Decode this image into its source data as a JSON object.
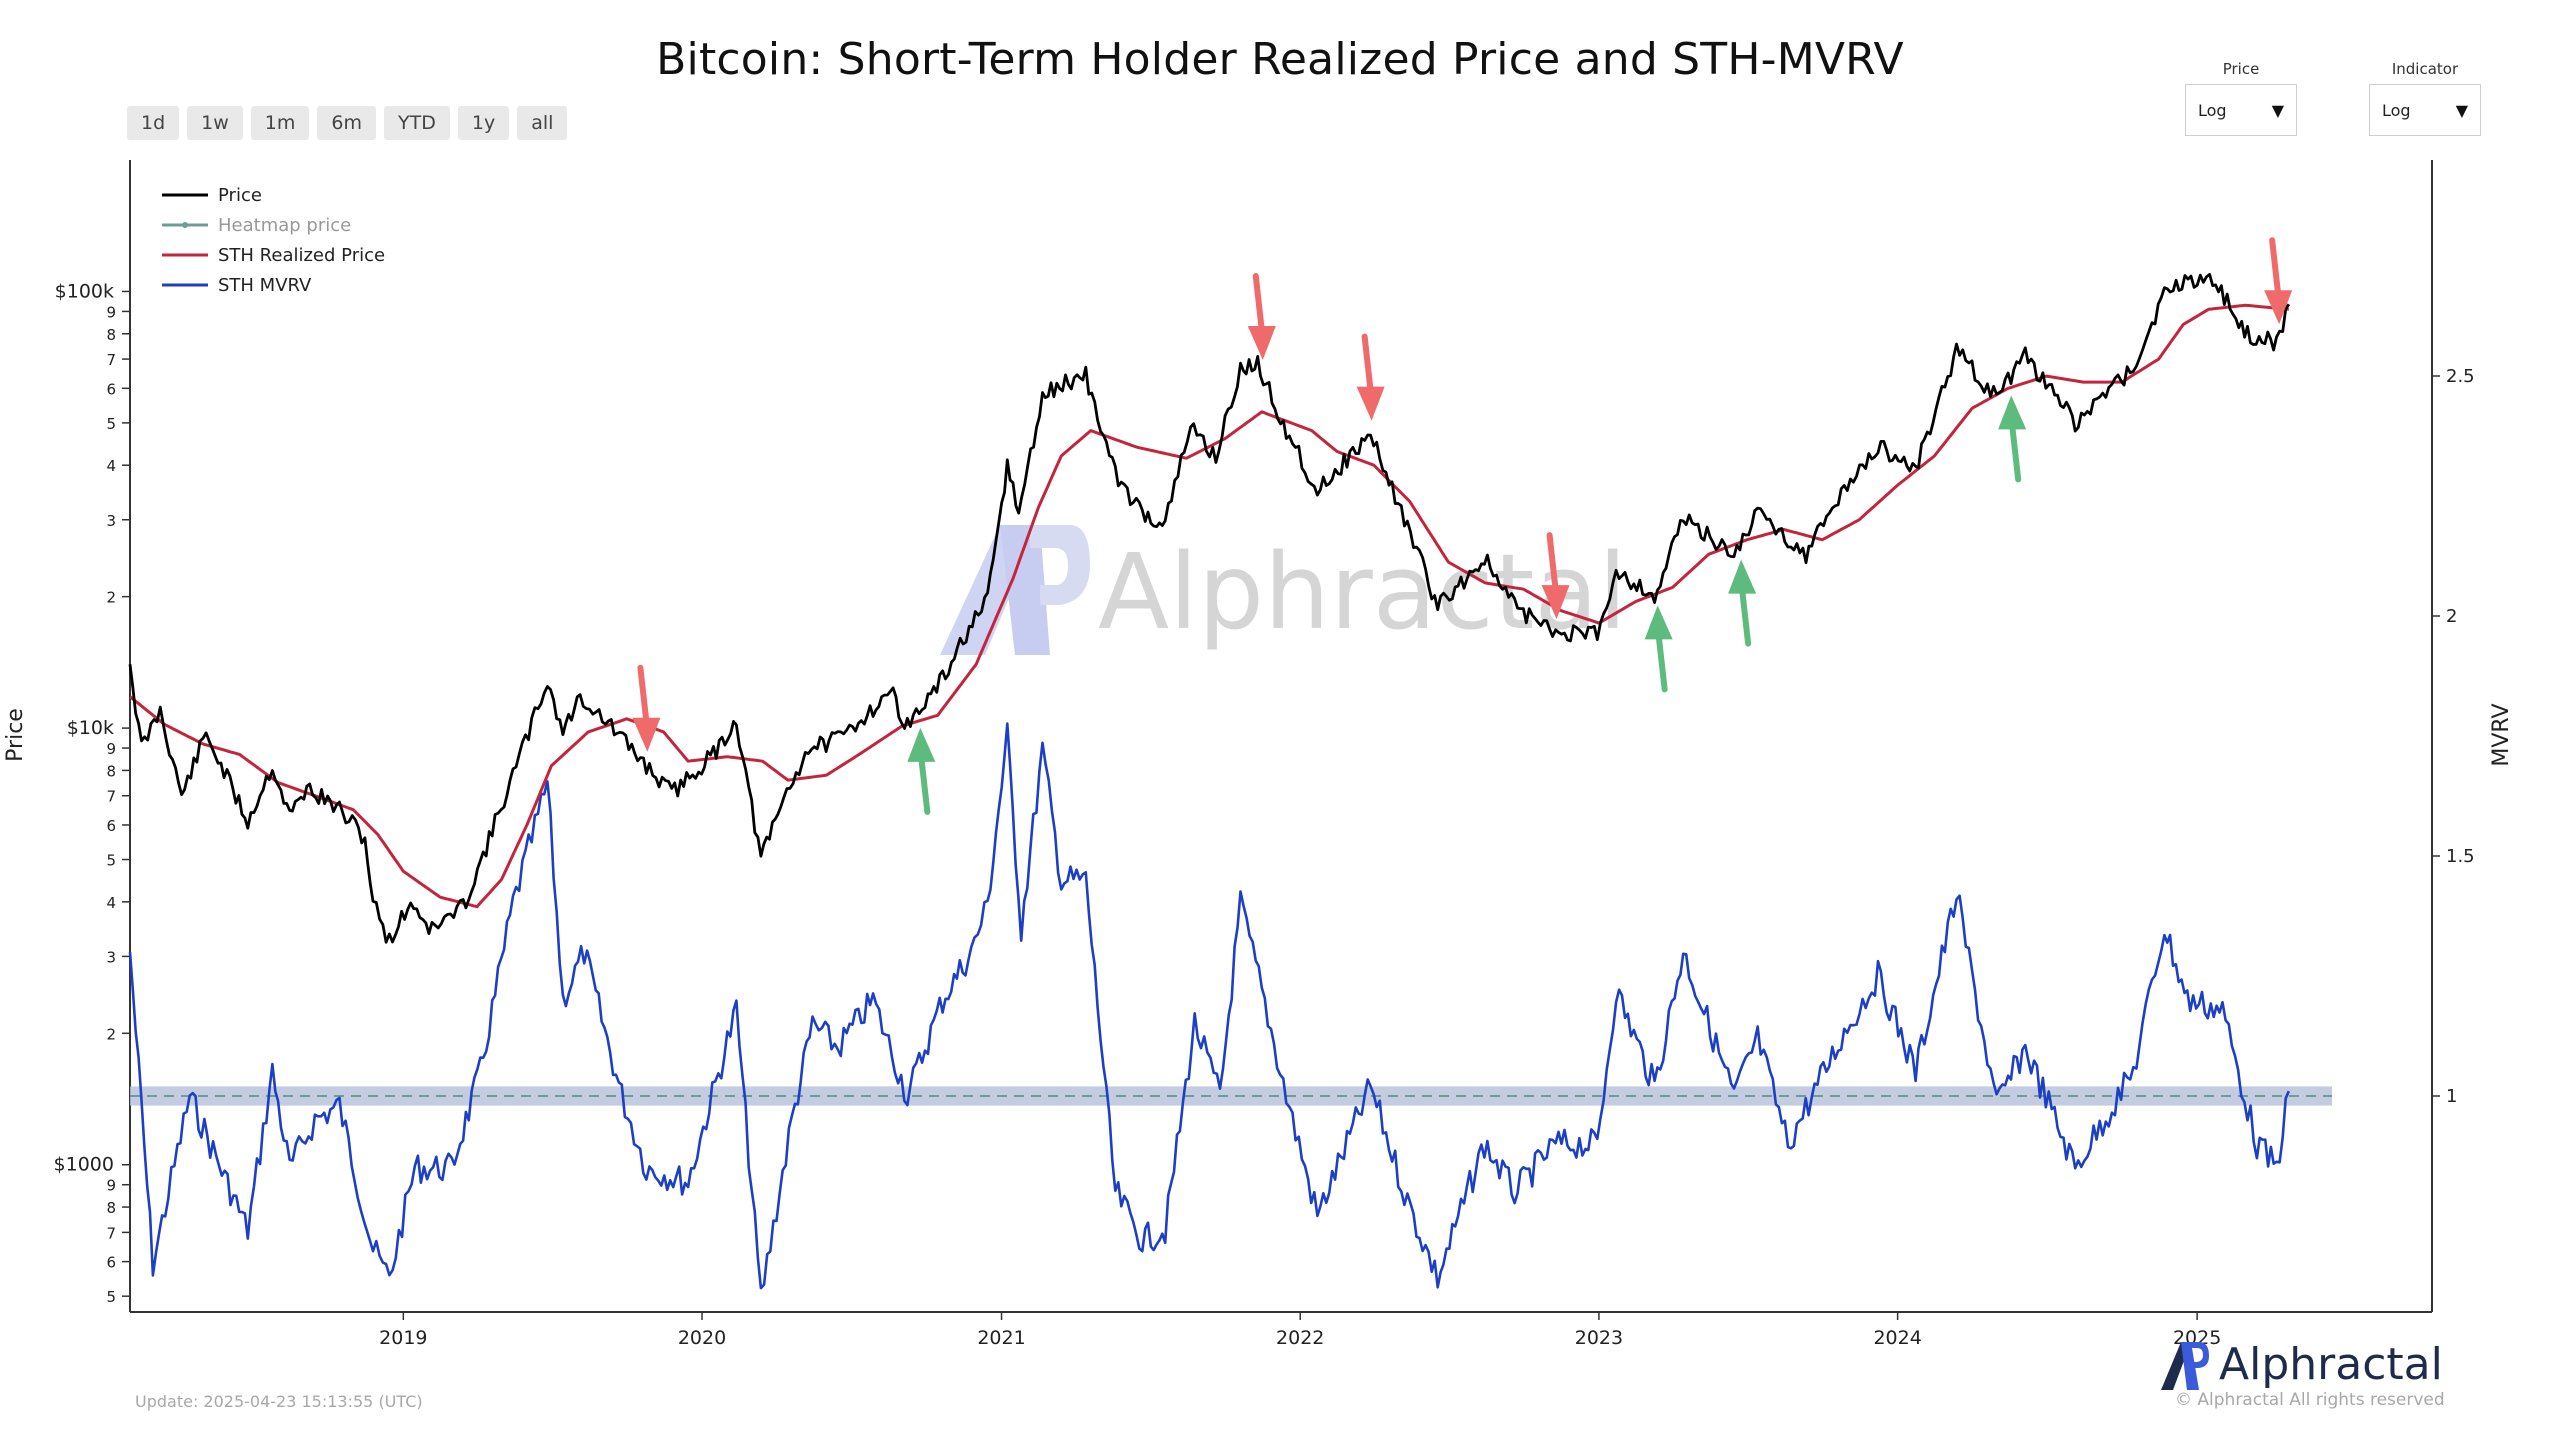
{
  "title": "Bitcoin: Short-Term Holder Realized Price and STH-MVRV",
  "range_buttons": [
    "1d",
    "1w",
    "1m",
    "6m",
    "YTD",
    "1y",
    "all"
  ],
  "controls": {
    "price": {
      "label": "Price",
      "value": "Log"
    },
    "indicator": {
      "label": "Indicator",
      "value": "Log"
    }
  },
  "watermark": "Alphractal",
  "update": "Update: 2025-04-23 15:13:55 (UTC)",
  "brand": {
    "name": "Alphractal",
    "rights": "© Alphractal All rights reserved"
  },
  "colors": {
    "price": "#000000",
    "heatmap": "#6a9e96",
    "sth_realized": "#c3253c",
    "sth_mvrv": "#1d3fc4",
    "band": "#b8c3da",
    "arrow_sell": "#ef6b6b",
    "arrow_buy": "#5dbb7d"
  },
  "chart_data": {
    "type": "line",
    "title": "Bitcoin: Short-Term Holder Realized Price and STH-MVRV",
    "ylabel": "Price",
    "y2label": "MVRV",
    "y_scale": "log",
    "ylim": [
      460,
      200000
    ],
    "y2lim": [
      0.55,
      2.95
    ],
    "xlim": [
      "2018-02-01",
      "2025-10-15"
    ],
    "x_ticks": [
      "2019",
      "2020",
      "2021",
      "2022",
      "2023",
      "2024",
      "2025"
    ],
    "y_ticks": [
      "$100k",
      "9",
      "8",
      "7",
      "6",
      "5",
      "4",
      "3",
      "2",
      "$10k",
      "9",
      "8",
      "7",
      "6",
      "5",
      "4",
      "3",
      "2",
      "$1000",
      "9",
      "8",
      "7",
      "6",
      "5"
    ],
    "y2_ticks": [
      "1",
      "1.5",
      "2",
      "2.5"
    ],
    "legend": [
      "Price",
      "Heatmap price",
      "STH Realized Price",
      "STH MVRV"
    ],
    "legend_position": "top-left",
    "grid": false,
    "series": [
      {
        "name": "Price",
        "axis": "left",
        "points": [
          [
            "2018-02-01",
            14000
          ],
          [
            "2018-02-15",
            9000
          ],
          [
            "2018-03-10",
            11000
          ],
          [
            "2018-04-05",
            7000
          ],
          [
            "2018-05-05",
            9700
          ],
          [
            "2018-06-25",
            6100
          ],
          [
            "2018-07-25",
            8200
          ],
          [
            "2018-08-15",
            6300
          ],
          [
            "2018-09-05",
            7300
          ],
          [
            "2018-10-15",
            6500
          ],
          [
            "2018-11-15",
            5600
          ],
          [
            "2018-11-25",
            4000
          ],
          [
            "2018-12-15",
            3250
          ],
          [
            "2019-01-10",
            4000
          ],
          [
            "2019-02-05",
            3450
          ],
          [
            "2019-03-15",
            3900
          ],
          [
            "2019-04-05",
            4900
          ],
          [
            "2019-05-15",
            7800
          ],
          [
            "2019-06-26",
            12800
          ],
          [
            "2019-07-15",
            9800
          ],
          [
            "2019-08-05",
            11800
          ],
          [
            "2019-09-05",
            10400
          ],
          [
            "2019-10-25",
            8200
          ],
          [
            "2019-11-25",
            7100
          ],
          [
            "2020-01-15",
            8700
          ],
          [
            "2020-02-12",
            10400
          ],
          [
            "2020-03-13",
            5000
          ],
          [
            "2020-04-10",
            6900
          ],
          [
            "2020-05-10",
            9000
          ],
          [
            "2020-06-15",
            9400
          ],
          [
            "2020-07-28",
            11100
          ],
          [
            "2020-08-18",
            12200
          ],
          [
            "2020-09-08",
            10100
          ],
          [
            "2020-10-21",
            12900
          ],
          [
            "2020-11-15",
            16000
          ],
          [
            "2020-12-15",
            19500
          ],
          [
            "2021-01-08",
            40000
          ],
          [
            "2021-01-22",
            31000
          ],
          [
            "2021-02-20",
            57000
          ],
          [
            "2021-03-13",
            61000
          ],
          [
            "2021-04-14",
            64000
          ],
          [
            "2021-05-20",
            38000
          ],
          [
            "2021-06-22",
            31000
          ],
          [
            "2021-07-20",
            29500
          ],
          [
            "2021-08-20",
            49000
          ],
          [
            "2021-09-20",
            42000
          ],
          [
            "2021-10-20",
            66000
          ],
          [
            "2021-11-10",
            68000
          ],
          [
            "2021-12-15",
            48000
          ],
          [
            "2022-01-22",
            35000
          ],
          [
            "2022-03-28",
            47000
          ],
          [
            "2022-05-12",
            29000
          ],
          [
            "2022-06-18",
            19000
          ],
          [
            "2022-08-14",
            24400
          ],
          [
            "2022-09-20",
            19000
          ],
          [
            "2022-11-09",
            16500
          ],
          [
            "2022-12-30",
            16500
          ],
          [
            "2023-01-22",
            23000
          ],
          [
            "2023-03-10",
            20000
          ],
          [
            "2023-04-14",
            30300
          ],
          [
            "2023-06-15",
            25000
          ],
          [
            "2023-07-14",
            31300
          ],
          [
            "2023-09-11",
            25000
          ],
          [
            "2023-10-24",
            34500
          ],
          [
            "2023-12-08",
            44000
          ],
          [
            "2024-01-23",
            39500
          ],
          [
            "2024-03-13",
            73000
          ],
          [
            "2024-05-01",
            57000
          ],
          [
            "2024-06-05",
            71000
          ],
          [
            "2024-08-05",
            50000
          ],
          [
            "2024-10-15",
            67000
          ],
          [
            "2024-11-22",
            98000
          ],
          [
            "2024-12-17",
            106000
          ],
          [
            "2025-01-20",
            108000
          ],
          [
            "2025-02-28",
            80000
          ],
          [
            "2025-04-08",
            76000
          ],
          [
            "2025-04-23",
            93500
          ]
        ]
      },
      {
        "name": "STH Realized Price",
        "axis": "left",
        "points": [
          [
            "2018-02-01",
            11800
          ],
          [
            "2018-03-15",
            10200
          ],
          [
            "2018-05-01",
            9200
          ],
          [
            "2018-06-15",
            8700
          ],
          [
            "2018-08-01",
            7500
          ],
          [
            "2018-09-15",
            7000
          ],
          [
            "2018-11-01",
            6500
          ],
          [
            "2018-12-01",
            5700
          ],
          [
            "2019-01-01",
            4700
          ],
          [
            "2019-02-15",
            4100
          ],
          [
            "2019-04-01",
            3900
          ],
          [
            "2019-05-01",
            4500
          ],
          [
            "2019-06-01",
            6000
          ],
          [
            "2019-07-01",
            8200
          ],
          [
            "2019-08-15",
            9800
          ],
          [
            "2019-10-01",
            10500
          ],
          [
            "2019-11-15",
            9800
          ],
          [
            "2019-12-15",
            8400
          ],
          [
            "2020-02-01",
            8600
          ],
          [
            "2020-03-15",
            8400
          ],
          [
            "2020-04-15",
            7600
          ],
          [
            "2020-06-01",
            7800
          ],
          [
            "2020-07-15",
            8800
          ],
          [
            "2020-09-01",
            10100
          ],
          [
            "2020-10-15",
            10700
          ],
          [
            "2020-12-01",
            14000
          ],
          [
            "2021-01-15",
            22000
          ],
          [
            "2021-02-15",
            32000
          ],
          [
            "2021-03-15",
            42000
          ],
          [
            "2021-04-20",
            48000
          ],
          [
            "2021-06-15",
            44000
          ],
          [
            "2021-08-15",
            41500
          ],
          [
            "2021-10-01",
            46000
          ],
          [
            "2021-11-15",
            53000
          ],
          [
            "2022-01-15",
            48000
          ],
          [
            "2022-02-15",
            43000
          ],
          [
            "2022-04-01",
            40000
          ],
          [
            "2022-05-15",
            33000
          ],
          [
            "2022-07-01",
            24000
          ],
          [
            "2022-08-15",
            21500
          ],
          [
            "2022-10-01",
            20800
          ],
          [
            "2022-11-15",
            18600
          ],
          [
            "2023-01-01",
            17400
          ],
          [
            "2023-02-15",
            19500
          ],
          [
            "2023-04-01",
            21000
          ],
          [
            "2023-05-15",
            25000
          ],
          [
            "2023-07-01",
            27000
          ],
          [
            "2023-08-15",
            28500
          ],
          [
            "2023-10-01",
            27000
          ],
          [
            "2023-11-15",
            30000
          ],
          [
            "2024-01-01",
            36000
          ],
          [
            "2024-02-15",
            42000
          ],
          [
            "2024-04-01",
            54000
          ],
          [
            "2024-05-15",
            60000
          ],
          [
            "2024-07-01",
            64000
          ],
          [
            "2024-08-15",
            62000
          ],
          [
            "2024-10-01",
            62000
          ],
          [
            "2024-11-15",
            70000
          ],
          [
            "2024-12-15",
            84000
          ],
          [
            "2025-01-15",
            91000
          ],
          [
            "2025-03-01",
            93000
          ],
          [
            "2025-04-23",
            91000
          ]
        ]
      },
      {
        "name": "STH MVRV",
        "axis": "right",
        "points": [
          [
            "2018-02-01",
            1.3
          ],
          [
            "2018-03-01",
            0.65
          ],
          [
            "2018-04-15",
            1.0
          ],
          [
            "2018-05-10",
            0.9
          ],
          [
            "2018-06-25",
            0.72
          ],
          [
            "2018-07-25",
            1.05
          ],
          [
            "2018-08-15",
            0.85
          ],
          [
            "2018-09-15",
            0.95
          ],
          [
            "2018-10-15",
            0.98
          ],
          [
            "2018-11-25",
            0.68
          ],
          [
            "2018-12-15",
            0.62
          ],
          [
            "2019-01-15",
            0.85
          ],
          [
            "2019-03-01",
            0.85
          ],
          [
            "2019-04-05",
            1.05
          ],
          [
            "2019-05-15",
            1.4
          ],
          [
            "2019-06-26",
            1.65
          ],
          [
            "2019-07-15",
            1.2
          ],
          [
            "2019-08-10",
            1.3
          ],
          [
            "2019-09-25",
            1.0
          ],
          [
            "2019-10-25",
            0.85
          ],
          [
            "2019-12-15",
            0.82
          ],
          [
            "2020-02-12",
            1.18
          ],
          [
            "2020-03-13",
            0.58
          ],
          [
            "2020-04-20",
            0.95
          ],
          [
            "2020-05-15",
            1.15
          ],
          [
            "2020-06-15",
            1.1
          ],
          [
            "2020-07-28",
            1.2
          ],
          [
            "2020-09-08",
            1.0
          ],
          [
            "2020-10-21",
            1.2
          ],
          [
            "2020-11-25",
            1.3
          ],
          [
            "2020-12-15",
            1.4
          ],
          [
            "2021-01-08",
            1.75
          ],
          [
            "2021-01-25",
            1.35
          ],
          [
            "2021-02-20",
            1.72
          ],
          [
            "2021-03-15",
            1.45
          ],
          [
            "2021-04-14",
            1.45
          ],
          [
            "2021-05-20",
            0.8
          ],
          [
            "2021-06-22",
            0.7
          ],
          [
            "2021-07-20",
            0.72
          ],
          [
            "2021-08-25",
            1.15
          ],
          [
            "2021-09-25",
            1.0
          ],
          [
            "2021-10-20",
            1.4
          ],
          [
            "2021-11-15",
            1.22
          ],
          [
            "2021-12-15",
            1.0
          ],
          [
            "2022-01-22",
            0.75
          ],
          [
            "2022-03-28",
            1.02
          ],
          [
            "2022-05-12",
            0.78
          ],
          [
            "2022-06-18",
            0.62
          ],
          [
            "2022-08-14",
            0.9
          ],
          [
            "2022-09-20",
            0.8
          ],
          [
            "2022-11-09",
            0.9
          ],
          [
            "2022-12-30",
            0.9
          ],
          [
            "2023-01-22",
            1.22
          ],
          [
            "2023-03-10",
            1.02
          ],
          [
            "2023-04-14",
            1.3
          ],
          [
            "2023-06-15",
            1.0
          ],
          [
            "2023-07-14",
            1.12
          ],
          [
            "2023-08-20",
            0.9
          ],
          [
            "2023-10-24",
            1.12
          ],
          [
            "2023-12-08",
            1.25
          ],
          [
            "2024-01-23",
            1.05
          ],
          [
            "2024-03-13",
            1.42
          ],
          [
            "2024-05-01",
            0.98
          ],
          [
            "2024-06-05",
            1.1
          ],
          [
            "2024-08-05",
            0.85
          ],
          [
            "2024-10-15",
            1.05
          ],
          [
            "2024-11-22",
            1.35
          ],
          [
            "2024-12-20",
            1.2
          ],
          [
            "2025-02-01",
            1.18
          ],
          [
            "2025-03-15",
            0.9
          ],
          [
            "2025-04-08",
            0.85
          ],
          [
            "2025-04-23",
            1.01
          ]
        ]
      }
    ],
    "reference_line": {
      "axis": "right",
      "value": 1.0,
      "style": "dashed"
    },
    "band": {
      "axis": "right",
      "from": 0.98,
      "to": 1.02
    },
    "annotations": [
      {
        "type": "sell-arrow",
        "date": "2019-10-25",
        "near": "price"
      },
      {
        "type": "sell-arrow",
        "date": "2021-11-15",
        "near": "price"
      },
      {
        "type": "sell-arrow",
        "date": "2022-03-28",
        "near": "price"
      },
      {
        "type": "sell-arrow",
        "date": "2022-11-09",
        "near": "price"
      },
      {
        "type": "sell-arrow",
        "date": "2025-04-10",
        "near": "price"
      },
      {
        "type": "buy-arrow",
        "date": "2020-09-25",
        "near": "price"
      },
      {
        "type": "buy-arrow",
        "date": "2023-03-15",
        "near": "price"
      },
      {
        "type": "buy-arrow",
        "date": "2023-06-25",
        "near": "price"
      },
      {
        "type": "buy-arrow",
        "date": "2024-05-20",
        "near": "price"
      }
    ]
  }
}
